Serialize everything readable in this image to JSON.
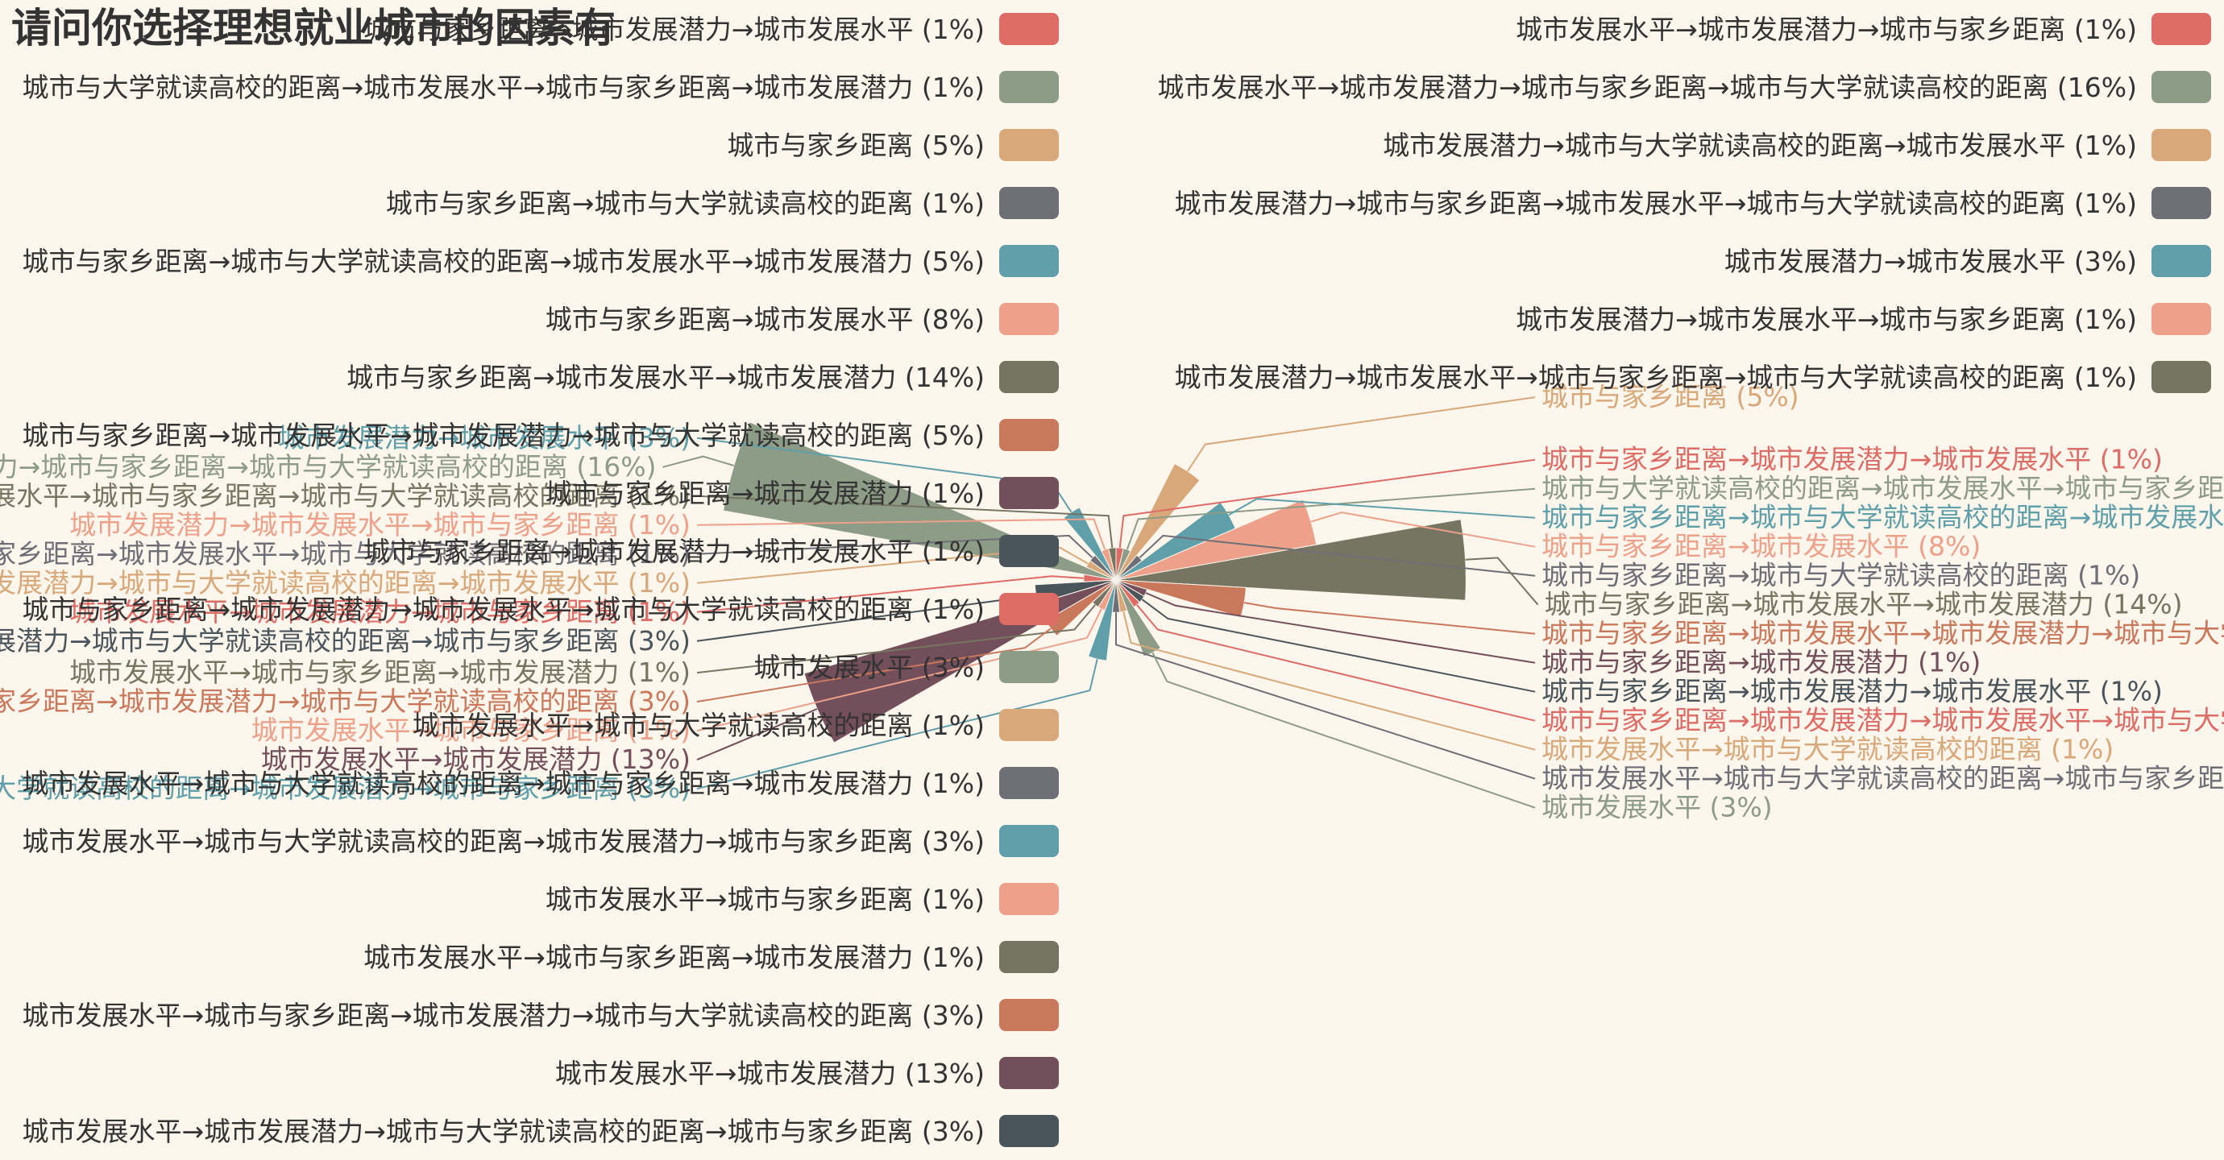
{
  "chart_data": {
    "type": "pie",
    "variant": "rose",
    "title": "请问你选择理想就业城市的因素有",
    "legend": "left-and-right",
    "palette": [
      "#dd6b66",
      "#8d9c86",
      "#d8a87a",
      "#6e6e76",
      "#5e9fa9",
      "#eda08a",
      "#767562",
      "#c9785c",
      "#734f5b",
      "#4a555b"
    ],
    "slices": [
      {
        "name": "城市与家乡距离→城市发展潜力→城市发展水平",
        "label": "城市与家乡距离→城市发展潜力→城市发展水平 (1%)",
        "pct": 1
      },
      {
        "name": "城市与大学就读高校的距离→城市发展水平→城市与家乡距离→城市发展潜力",
        "label": "城市与大学就读高校的距离→城市发展水平→城市与家乡距离→城市发展潜力 (1%)",
        "pct": 1
      },
      {
        "name": "城市与家乡距离",
        "label": "城市与家乡距离 (5%)",
        "pct": 5
      },
      {
        "name": "城市与家乡距离→城市与大学就读高校的距离",
        "label": "城市与家乡距离→城市与大学就读高校的距离 (1%)",
        "pct": 1
      },
      {
        "name": "城市与家乡距离→城市与大学就读高校的距离→城市发展水平→城市发展潜力",
        "label": "城市与家乡距离→城市与大学就读高校的距离→城市发展水平→城市发展潜力 (5%)",
        "pct": 5
      },
      {
        "name": "城市与家乡距离→城市发展水平",
        "label": "城市与家乡距离→城市发展水平 (8%)",
        "pct": 8
      },
      {
        "name": "城市与家乡距离→城市发展水平→城市发展潜力",
        "label": "城市与家乡距离→城市发展水平→城市发展潜力 (14%)",
        "pct": 14
      },
      {
        "name": "城市与家乡距离→城市发展水平→城市发展潜力→城市与大学就读高校的距离",
        "label": "城市与家乡距离→城市发展水平→城市发展潜力→城市与大学就读高校的距离 (5%)",
        "pct": 5
      },
      {
        "name": "城市与家乡距离→城市发展潜力",
        "label": "城市与家乡距离→城市发展潜力 (1%)",
        "pct": 1
      },
      {
        "name": "城市与家乡距离→城市发展潜力→城市发展水平",
        "label": "城市与家乡距离→城市发展潜力→城市发展水平 (1%)",
        "pct": 1
      },
      {
        "name": "城市与家乡距离→城市发展潜力→城市发展水平→城市与大学就读高校的距离",
        "label": "城市与家乡距离→城市发展潜力→城市发展水平→城市与大学就读高校的距离 (1%)",
        "pct": 1
      },
      {
        "name": "城市发展水平",
        "label": "城市发展水平 (3%)",
        "pct": 3
      },
      {
        "name": "城市发展水平→城市与大学就读高校的距离",
        "label": "城市发展水平→城市与大学就读高校的距离 (1%)",
        "pct": 1
      },
      {
        "name": "城市发展水平→城市与大学就读高校的距离→城市与家乡距离→城市发展潜力",
        "label": "城市发展水平→城市与大学就读高校的距离→城市与家乡距离→城市发展潜力 (1%)",
        "pct": 1
      },
      {
        "name": "城市发展水平→城市与大学就读高校的距离→城市发展潜力→城市与家乡距离",
        "label": "城市发展水平→城市与大学就读高校的距离→城市发展潜力→城市与家乡距离 (3%)",
        "pct": 3
      },
      {
        "name": "城市发展水平→城市与家乡距离",
        "label": "城市发展水平→城市与家乡距离 (1%)",
        "pct": 1
      },
      {
        "name": "城市发展水平→城市与家乡距离→城市发展潜力",
        "label": "城市发展水平→城市与家乡距离→城市发展潜力 (1%)",
        "pct": 1
      },
      {
        "name": "城市发展水平→城市与家乡距离→城市发展潜力→城市与大学就读高校的距离",
        "label": "城市发展水平→城市与家乡距离→城市发展潜力→城市与大学就读高校的距离 (3%)",
        "pct": 3
      },
      {
        "name": "城市发展水平→城市发展潜力",
        "label": "城市发展水平→城市发展潜力 (13%)",
        "pct": 13
      },
      {
        "name": "城市发展水平→城市发展潜力→城市与大学就读高校的距离→城市与家乡距离",
        "label": "城市发展水平→城市发展潜力→城市与大学就读高校的距离→城市与家乡距离 (3%)",
        "pct": 3
      },
      {
        "name": "城市发展水平→城市发展潜力→城市与家乡距离",
        "label": "城市发展水平→城市发展潜力→城市与家乡距离 (1%)",
        "pct": 1
      },
      {
        "name": "城市发展水平→城市发展潜力→城市与家乡距离→城市与大学就读高校的距离",
        "label": "城市发展水平→城市发展潜力→城市与家乡距离→城市与大学就读高校的距离 (16%)",
        "pct": 16
      },
      {
        "name": "城市发展潜力→城市与大学就读高校的距离→城市发展水平",
        "label": "城市发展潜力→城市与大学就读高校的距离→城市发展水平 (1%)",
        "pct": 1
      },
      {
        "name": "城市发展潜力→城市与家乡距离→城市发展水平→城市与大学就读高校的距离",
        "label": "城市发展潜力→城市与家乡距离→城市发展水平→城市与大学就读高校的距离 (1%)",
        "pct": 1
      },
      {
        "name": "城市发展潜力→城市发展水平",
        "label": "城市发展潜力→城市发展水平 (3%)",
        "pct": 3
      },
      {
        "name": "城市发展潜力→城市发展水平→城市与家乡距离",
        "label": "城市发展潜力→城市发展水平→城市与家乡距离 (1%)",
        "pct": 1
      },
      {
        "name": "城市发展潜力→城市发展水平→城市与家乡距离→城市与大学就读高校的距离",
        "label": "城市发展潜力→城市发展水平→城市与家乡距离→城市与大学就读高校的距离 (1%)",
        "pct": 1
      }
    ]
  }
}
